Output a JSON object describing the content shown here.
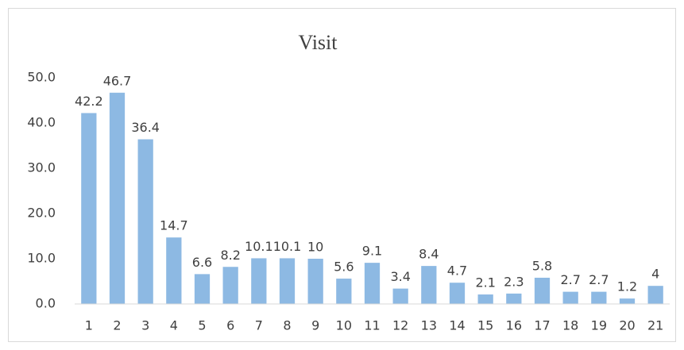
{
  "chart_data": {
    "type": "bar",
    "title": "Visit",
    "categories": [
      "1",
      "2",
      "3",
      "4",
      "5",
      "6",
      "7",
      "8",
      "9",
      "10",
      "11",
      "12",
      "13",
      "14",
      "15",
      "16",
      "17",
      "18",
      "19",
      "20",
      "21"
    ],
    "values": [
      42.2,
      46.7,
      36.4,
      14.7,
      6.6,
      8.2,
      10.1,
      10.1,
      10,
      5.6,
      9.1,
      3.4,
      8.4,
      4.7,
      2.1,
      2.3,
      5.8,
      2.7,
      2.7,
      1.2,
      4
    ],
    "color": "#8db9e3",
    "ylim": [
      0,
      50
    ],
    "yticks": [
      {
        "value": 0,
        "label": "0.0"
      },
      {
        "value": 10,
        "label": "10.0"
      },
      {
        "value": 20,
        "label": "20.0"
      },
      {
        "value": 30,
        "label": "30.0"
      },
      {
        "value": 40,
        "label": "40.0"
      },
      {
        "value": 50,
        "label": "50.0"
      }
    ],
    "grid": false
  }
}
